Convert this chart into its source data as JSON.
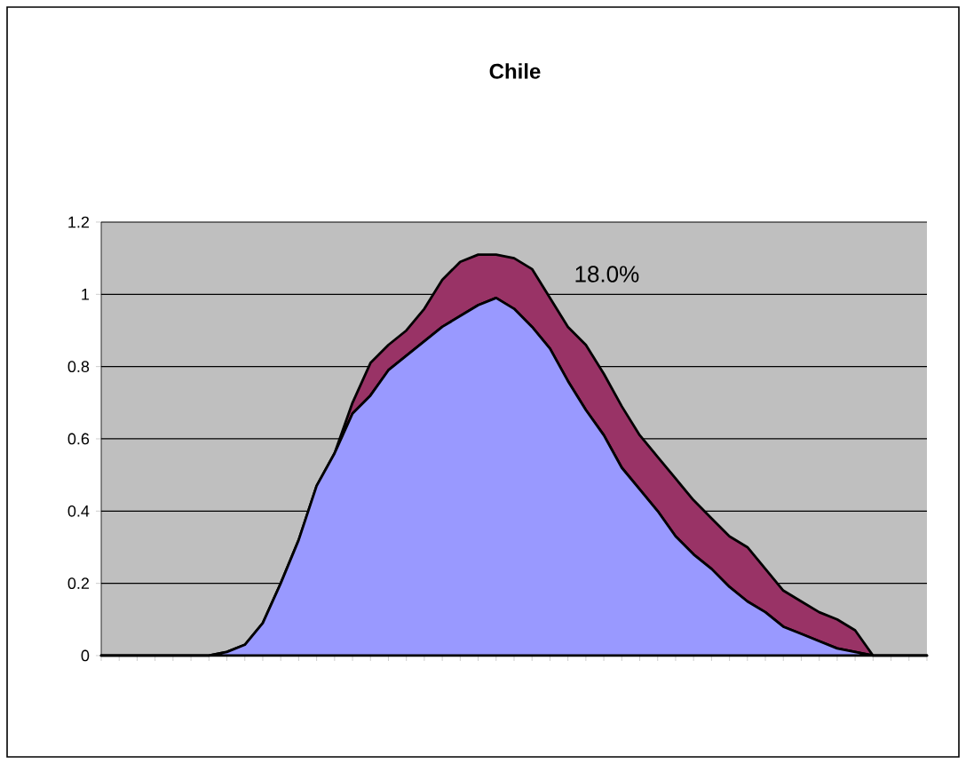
{
  "chart_data": {
    "type": "area",
    "title": "Chile",
    "stacked": true,
    "categories": [
      null,
      null,
      null,
      null,
      null,
      null,
      null,
      null,
      null,
      null,
      null,
      null,
      null,
      null,
      null,
      null,
      null,
      null,
      null,
      null,
      null,
      null,
      null,
      null,
      null,
      null,
      null,
      null,
      null,
      null,
      null,
      null,
      null,
      null,
      null,
      null,
      null,
      null,
      null,
      null,
      null,
      null,
      null,
      null,
      null,
      null,
      null
    ],
    "series": [
      {
        "color": "#9999ff",
        "values": [
          0,
          0,
          0,
          0,
          0,
          0,
          0,
          0.01,
          0.03,
          0.09,
          0.2,
          0.32,
          0.47,
          0.56,
          0.67,
          0.72,
          0.79,
          0.83,
          0.87,
          0.91,
          0.94,
          0.97,
          0.99,
          0.96,
          0.91,
          0.85,
          0.76,
          0.68,
          0.61,
          0.52,
          0.46,
          0.4,
          0.33,
          0.28,
          0.24,
          0.19,
          0.15,
          0.12,
          0.08,
          0.06,
          0.04,
          0.02,
          0.01,
          0,
          0,
          0,
          0
        ]
      },
      {
        "color": "#993366",
        "values": [
          0,
          0,
          0,
          0,
          0,
          0,
          0,
          0,
          0,
          0,
          0,
          0,
          0,
          0,
          0.03,
          0.09,
          0.07,
          0.07,
          0.09,
          0.13,
          0.15,
          0.14,
          0.12,
          0.14,
          0.16,
          0.14,
          0.15,
          0.18,
          0.17,
          0.17,
          0.15,
          0.15,
          0.16,
          0.15,
          0.14,
          0.14,
          0.15,
          0.12,
          0.1,
          0.09,
          0.08,
          0.08,
          0.06,
          0,
          0,
          0,
          0
        ]
      }
    ],
    "ylim": [
      0,
      1.2
    ],
    "yticks": [
      0,
      0.2,
      0.4,
      0.6,
      0.8,
      1,
      1.2
    ],
    "grid": "y",
    "annotations": [
      "18.0%"
    ]
  }
}
